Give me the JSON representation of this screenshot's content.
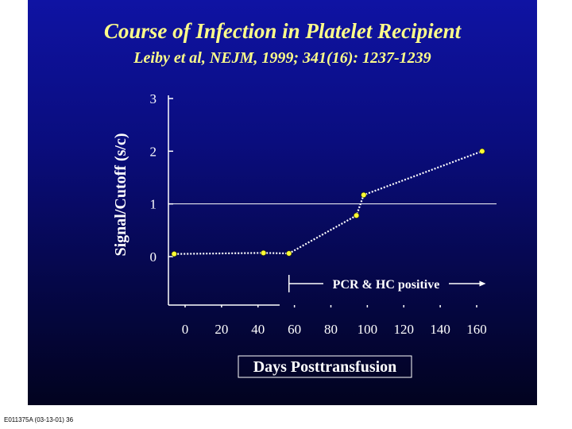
{
  "slide": {
    "title": "Course of Infection in Platelet Recipient",
    "subtitle": "Leiby et al, NEJM, 1999; 341(16): 1237-1239",
    "footer": "E011375A (03-13-01) 36"
  },
  "colors": {
    "background": "#0a0d7e",
    "title_text": "#ffff8a",
    "axis_and_labels": "#ffffff",
    "data_point": "#ffff33",
    "series_line": "#ffffff"
  },
  "chart_data": {
    "type": "line",
    "title": "",
    "xlabel": "Days Posttransfusion",
    "ylabel": "Signal/Cutoff (s/c)",
    "xlim": [
      0,
      160
    ],
    "ylim": [
      0,
      3
    ],
    "xticks": [
      0,
      20,
      40,
      60,
      80,
      100,
      120,
      140,
      160
    ],
    "yticks": [
      0,
      1,
      2,
      3
    ],
    "grid": false,
    "legend": "none",
    "reference_line": {
      "y": 1
    },
    "series": [
      {
        "points": [
          {
            "x": -6,
            "y": 0.05
          },
          {
            "x": 43,
            "y": 0.07
          },
          {
            "x": 57,
            "y": 0.06
          },
          {
            "x": 94,
            "y": 0.78
          },
          {
            "x": 98,
            "y": 1.17
          },
          {
            "x": 163,
            "y": 2.0
          }
        ]
      }
    ],
    "annotations": [
      {
        "text": "PCR & HC positive",
        "x_start": 57,
        "x_end": 165,
        "arrow": "right"
      }
    ]
  }
}
